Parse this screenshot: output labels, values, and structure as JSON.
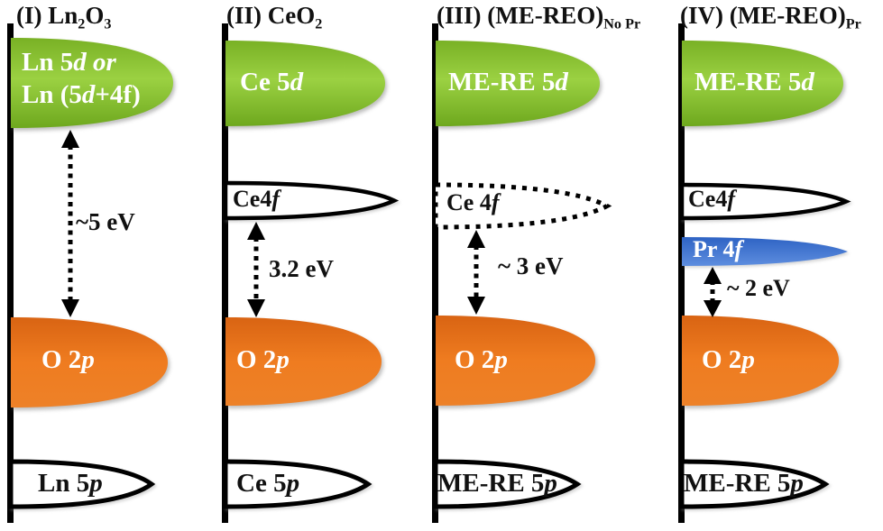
{
  "figure_description": "Schematic energy band diagrams comparing band gaps of rare-earth oxides",
  "colors": {
    "axis": "#000000",
    "outline": "#000000",
    "green_top": "#79B125",
    "green_mid": "#9BD142",
    "green_bottom": "#6EA81E",
    "orange_top": "#D96413",
    "orange_mid": "#EF7C20",
    "orange_bottom": "#ED8128",
    "blue_top": "#2E63C4",
    "blue_bottom": "#5E8EDF",
    "band_text_light": "#FFFFFF",
    "band_text_dark": "#111111"
  },
  "panels": [
    {
      "numeral": "I",
      "title_parts": [
        {
          "t": "(I) Ln"
        },
        {
          "t": "2",
          "sub": true
        },
        {
          "t": "O"
        },
        {
          "t": "3",
          "sub": true
        }
      ],
      "gap_label": "~5 eV",
      "bands": {
        "d_band": {
          "style": "green-filled",
          "line1_parts": [
            {
              "t": "Ln 5"
            },
            {
              "t": "d",
              "i": true
            },
            {
              "t": " "
            },
            {
              "t": "or",
              "i": true
            }
          ],
          "line2_parts": [
            {
              "t": "Ln (5"
            },
            {
              "t": "d",
              "i": true
            },
            {
              "t": "+4f)"
            }
          ]
        },
        "o2p": {
          "style": "orange-filled",
          "label_parts": [
            {
              "t": "O 2"
            },
            {
              "t": "p",
              "i": true
            }
          ]
        },
        "p_shallow": {
          "style": "white-outline",
          "label_parts": [
            {
              "t": "Ln 5"
            },
            {
              "t": "p",
              "i": true
            }
          ]
        }
      }
    },
    {
      "numeral": "II",
      "title_parts": [
        {
          "t": "(II) CeO"
        },
        {
          "t": "2",
          "sub": true
        }
      ],
      "gap_label": "3.2 eV",
      "bands": {
        "d_band": {
          "style": "green-filled",
          "label_parts": [
            {
              "t": "Ce 5"
            },
            {
              "t": "d",
              "i": true
            }
          ]
        },
        "f_band": {
          "style": "white-outline",
          "label_parts": [
            {
              "t": "Ce4"
            },
            {
              "t": "f",
              "i": true
            }
          ]
        },
        "o2p": {
          "style": "orange-filled",
          "label_parts": [
            {
              "t": "O 2"
            },
            {
              "t": "p",
              "i": true
            }
          ]
        },
        "p_shallow": {
          "style": "white-outline",
          "label_parts": [
            {
              "t": "Ce 5"
            },
            {
              "t": "p",
              "i": true
            }
          ]
        }
      }
    },
    {
      "numeral": "III",
      "title_parts": [
        {
          "t": "(III) (ME-REO)"
        },
        {
          "t": "No Pr",
          "sub": true
        }
      ],
      "gap_label": "~ 3 eV",
      "bands": {
        "d_band": {
          "style": "green-filled",
          "label_parts": [
            {
              "t": "ME-RE 5"
            },
            {
              "t": "d",
              "i": true
            }
          ]
        },
        "f_band": {
          "style": "dotted-outline",
          "label_parts": [
            {
              "t": "Ce 4"
            },
            {
              "t": "f",
              "i": true
            }
          ]
        },
        "o2p": {
          "style": "orange-filled",
          "label_parts": [
            {
              "t": "O 2"
            },
            {
              "t": "p",
              "i": true
            }
          ]
        },
        "p_shallow": {
          "style": "white-outline",
          "label_parts": [
            {
              "t": "ME-RE 5"
            },
            {
              "t": "p",
              "i": true
            }
          ]
        }
      }
    },
    {
      "numeral": "IV",
      "title_parts": [
        {
          "t": "(IV) (ME-REO)"
        },
        {
          "t": "Pr",
          "sub": true
        }
      ],
      "gap_label": "~ 2 eV",
      "bands": {
        "d_band": {
          "style": "green-filled",
          "label_parts": [
            {
              "t": "ME-RE 5"
            },
            {
              "t": "d",
              "i": true
            }
          ]
        },
        "f_band": {
          "style": "white-outline",
          "label_parts": [
            {
              "t": "Ce4"
            },
            {
              "t": "f",
              "i": true
            }
          ]
        },
        "pr_band": {
          "style": "blue-filled",
          "label_parts": [
            {
              "t": "Pr 4"
            },
            {
              "t": "f",
              "i": true
            }
          ]
        },
        "o2p": {
          "style": "orange-filled",
          "label_parts": [
            {
              "t": "O 2"
            },
            {
              "t": "p",
              "i": true
            }
          ]
        },
        "p_shallow": {
          "style": "white-outline",
          "label_parts": [
            {
              "t": "ME-RE 5"
            },
            {
              "t": "p",
              "i": true
            }
          ]
        }
      }
    }
  ]
}
